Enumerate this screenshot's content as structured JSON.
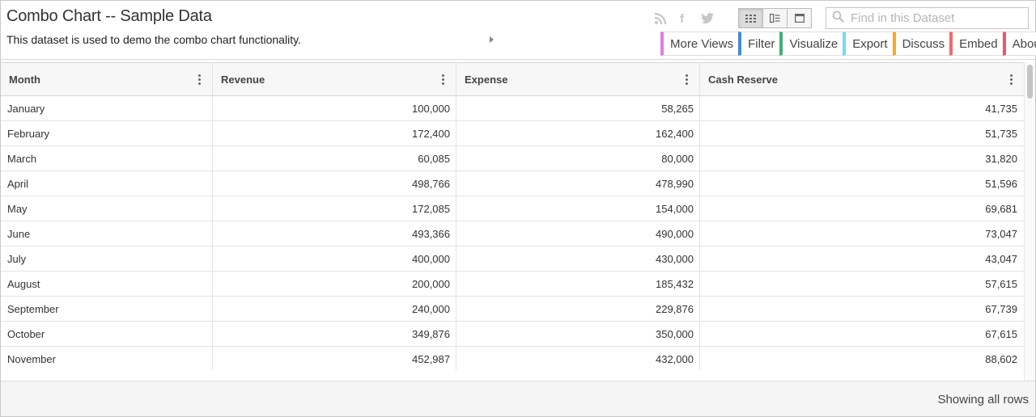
{
  "dataset": {
    "title": "Combo Chart -- Sample Data",
    "description": "This dataset is used to demo the combo chart functionality."
  },
  "social": {
    "icons": [
      "rss-icon",
      "facebook-icon",
      "twitter-icon"
    ],
    "facebook_glyph": "f"
  },
  "view_toggle": {
    "active": "grid",
    "options": [
      "grid-view-icon",
      "detail-view-icon",
      "page-view-icon"
    ]
  },
  "search": {
    "placeholder": "Find in this Dataset",
    "value": ""
  },
  "menu": [
    {
      "label": "More Views",
      "color": "#e07ce4"
    },
    {
      "label": "Filter",
      "color": "#3b8fd6"
    },
    {
      "label": "Visualize",
      "color": "#3bb27a"
    },
    {
      "label": "Export",
      "color": "#7fd6f0"
    },
    {
      "label": "Discuss",
      "color": "#f3a83b"
    },
    {
      "label": "Embed",
      "color": "#ef6a6a"
    },
    {
      "label": "About",
      "color": "#e25d6b"
    }
  ],
  "table": {
    "columns": [
      "Month",
      "Revenue",
      "Expense",
      "Cash Reserve"
    ],
    "rows": [
      [
        "January",
        "100,000",
        "58,265",
        "41,735"
      ],
      [
        "February",
        "172,400",
        "162,400",
        "51,735"
      ],
      [
        "March",
        "60,085",
        "80,000",
        "31,820"
      ],
      [
        "April",
        "498,766",
        "478,990",
        "51,596"
      ],
      [
        "May",
        "172,085",
        "154,000",
        "69,681"
      ],
      [
        "June",
        "493,366",
        "490,000",
        "73,047"
      ],
      [
        "July",
        "400,000",
        "430,000",
        "43,047"
      ],
      [
        "August",
        "200,000",
        "185,432",
        "57,615"
      ],
      [
        "September",
        "240,000",
        "229,876",
        "67,739"
      ],
      [
        "October",
        "349,876",
        "350,000",
        "67,615"
      ],
      [
        "November",
        "452,987",
        "432,000",
        "88,602"
      ]
    ]
  },
  "footer": {
    "status": "Showing all rows"
  }
}
